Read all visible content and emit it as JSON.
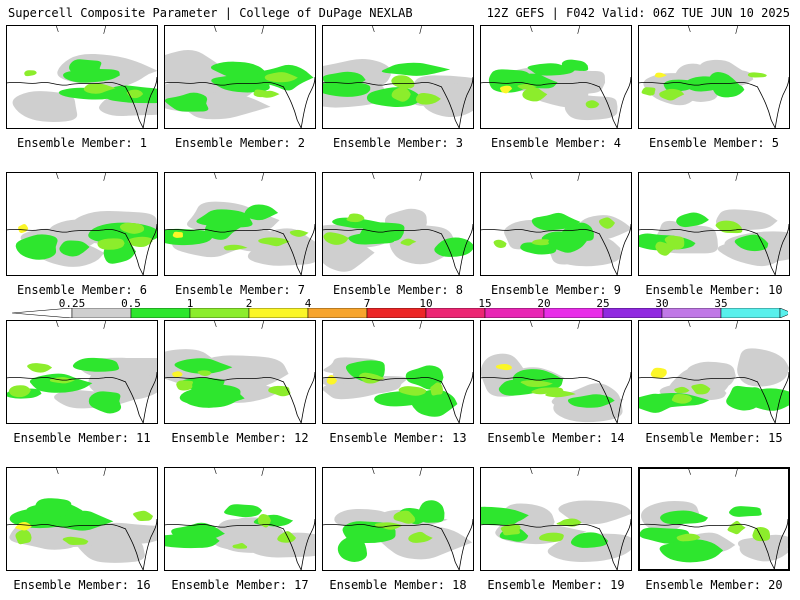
{
  "header": {
    "left": "Supercell Composite Parameter | College of DuPage NEXLAB",
    "right": "12Z GEFS | F042 Valid: 06Z TUE JUN 10 2025"
  },
  "legend": {
    "labels": [
      "0.25",
      "0.5",
      "1",
      "2",
      "4",
      "7",
      "10",
      "15",
      "20",
      "25",
      "30",
      "35"
    ],
    "colors": [
      "#cfcfcf",
      "#2ee62e",
      "#8ced2c",
      "#fbf628",
      "#f7a42c",
      "#ec2626",
      "#ec2673",
      "#e826b4",
      "#e82ee8",
      "#9029e0",
      "#c078e6",
      "#58f0ec"
    ]
  },
  "members": [
    {
      "label": "Ensemble Member: 1"
    },
    {
      "label": "Ensemble Member: 2"
    },
    {
      "label": "Ensemble Member: 3"
    },
    {
      "label": "Ensemble Member: 4"
    },
    {
      "label": "Ensemble Member: 5"
    },
    {
      "label": "Ensemble Member: 6"
    },
    {
      "label": "Ensemble Member: 7"
    },
    {
      "label": "Ensemble Member: 8"
    },
    {
      "label": "Ensemble Member: 9"
    },
    {
      "label": "Ensemble Member: 10"
    },
    {
      "label": "Ensemble Member: 11"
    },
    {
      "label": "Ensemble Member: 12"
    },
    {
      "label": "Ensemble Member: 13"
    },
    {
      "label": "Ensemble Member: 14"
    },
    {
      "label": "Ensemble Member: 15"
    },
    {
      "label": "Ensemble Member: 16"
    },
    {
      "label": "Ensemble Member: 17"
    },
    {
      "label": "Ensemble Member: 18"
    },
    {
      "label": "Ensemble Member: 19"
    },
    {
      "label": "Ensemble Member: 20",
      "selected": true
    }
  ]
}
